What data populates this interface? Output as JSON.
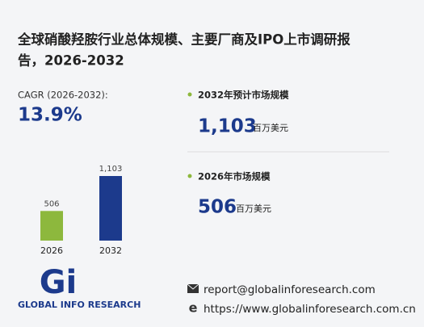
{
  "title": [
    "全球硝酸羟胺行业总体规模、主要厂商及IPO上市调研报",
    "告，2026-2032"
  ],
  "cagr": {
    "label": "CAGR (2026-2032):",
    "value": "13.9%"
  },
  "stats": [
    {
      "label": "2032年预计市场规模",
      "value": "1,103",
      "unit": "百万美元"
    },
    {
      "label": "2026年市场规模",
      "value": "506",
      "unit": "百万美元"
    }
  ],
  "chart_data": {
    "type": "bar",
    "categories": [
      "2026",
      "2032"
    ],
    "values": [
      506,
      1103
    ],
    "value_labels": [
      "506",
      "1,103"
    ],
    "colors": [
      "#8db83d",
      "#1c3a8c"
    ]
  },
  "logo": {
    "mark": "Gi",
    "name": "GLOBAL INFO RESEARCH"
  },
  "contact": {
    "email": "report@globalinforesearch.com",
    "url": "https://www.globalinforesearch.com.cn"
  }
}
